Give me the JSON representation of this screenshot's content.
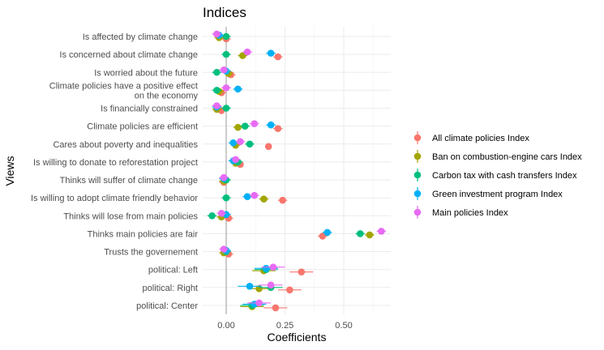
{
  "chart_data": {
    "type": "scatter",
    "title": "Indices",
    "xlabel": "Coefficients",
    "ylabel": "Views",
    "xlim": [
      -0.1,
      0.7
    ],
    "x_ticks": [
      0.0,
      0.25,
      0.5
    ],
    "x_tick_labels": [
      "0.00",
      "0.25",
      "0.50"
    ],
    "grid": true,
    "legend_position": "right",
    "categories": [
      [
        "Is affected by climate change"
      ],
      [
        "Is concerned about climate change"
      ],
      [
        "Is worried about the future"
      ],
      [
        "Climate policies have a positive effect ",
        "on the economy"
      ],
      [
        "Is financially constrained"
      ],
      [
        "Climate policies are efficient"
      ],
      [
        "Cares about poverty and inequalities"
      ],
      [
        "Is willing to donate to reforestation project"
      ],
      [
        "Thinks will suffer of climate change"
      ],
      [
        "Is willing to adopt climate friendly behavior"
      ],
      [
        "Thinks will lose from main policies"
      ],
      [
        "Thinks main policies are fair"
      ],
      [
        "Trusts the governement"
      ],
      [
        "political: Left"
      ],
      [
        "political: Right"
      ],
      [
        "political: Center"
      ]
    ],
    "series": [
      {
        "name": "All climate policies Index",
        "color": "#F8766D",
        "values": [
          0.0,
          0.22,
          0.02,
          -0.02,
          -0.02,
          0.22,
          0.18,
          0.06,
          -0.01,
          0.24,
          0.01,
          0.41,
          0.01,
          0.32,
          0.27,
          0.21
        ],
        "ci_low": [
          -0.02,
          0.2,
          0.0,
          -0.04,
          -0.04,
          0.2,
          0.17,
          0.05,
          -0.03,
          0.22,
          -0.01,
          0.39,
          -0.01,
          0.27,
          0.22,
          0.16
        ],
        "ci_high": [
          0.02,
          0.24,
          0.04,
          0.0,
          0.0,
          0.24,
          0.19,
          0.07,
          0.01,
          0.26,
          0.03,
          0.43,
          0.03,
          0.37,
          0.32,
          0.26
        ]
      },
      {
        "name": "Ban on combustion-engine cars Index",
        "color": "#A3A500",
        "values": [
          -0.03,
          0.07,
          0.01,
          -0.03,
          -0.04,
          0.05,
          0.04,
          0.04,
          -0.01,
          0.16,
          -0.02,
          0.61,
          -0.01,
          0.16,
          0.14,
          0.11
        ],
        "ci_low": [
          -0.05,
          0.05,
          -0.01,
          -0.05,
          -0.06,
          0.03,
          0.02,
          0.02,
          -0.03,
          0.14,
          -0.04,
          0.59,
          -0.03,
          0.11,
          0.09,
          0.06
        ],
        "ci_high": [
          -0.01,
          0.09,
          0.03,
          -0.01,
          -0.02,
          0.07,
          0.06,
          0.06,
          0.01,
          0.18,
          0.0,
          0.63,
          0.01,
          0.21,
          0.19,
          0.16
        ]
      },
      {
        "name": "Carbon tax with cash transfers Index",
        "color": "#00BF7D",
        "values": [
          0.0,
          0.0,
          -0.04,
          -0.04,
          0.0,
          0.08,
          0.1,
          0.05,
          0.0,
          0.0,
          -0.06,
          0.57,
          0.0,
          0.17,
          0.19,
          0.11
        ],
        "ci_low": [
          -0.02,
          -0.02,
          -0.06,
          -0.06,
          -0.02,
          0.06,
          0.08,
          0.03,
          -0.02,
          -0.02,
          -0.08,
          0.55,
          -0.02,
          0.12,
          0.14,
          0.06
        ],
        "ci_high": [
          0.02,
          0.02,
          -0.02,
          -0.02,
          0.02,
          0.1,
          0.12,
          0.07,
          0.02,
          0.02,
          -0.04,
          0.59,
          0.02,
          0.22,
          0.24,
          0.16
        ]
      },
      {
        "name": "Green investment program Index",
        "color": "#00B0F6",
        "values": [
          -0.03,
          0.19,
          0.0,
          0.05,
          -0.04,
          0.19,
          0.03,
          0.03,
          -0.01,
          0.09,
          0.0,
          0.43,
          0.0,
          0.17,
          0.1,
          0.12
        ],
        "ci_low": [
          -0.05,
          0.17,
          -0.02,
          0.03,
          -0.06,
          0.17,
          0.01,
          0.01,
          -0.03,
          0.07,
          -0.02,
          0.41,
          -0.02,
          0.12,
          0.05,
          0.07
        ],
        "ci_high": [
          -0.01,
          0.21,
          0.02,
          0.07,
          -0.02,
          0.21,
          0.05,
          0.05,
          0.01,
          0.11,
          0.02,
          0.45,
          0.02,
          0.22,
          0.15,
          0.17
        ]
      },
      {
        "name": "Main policies Index",
        "color": "#E76BF3",
        "values": [
          -0.04,
          0.09,
          -0.01,
          0.0,
          -0.04,
          0.12,
          0.06,
          0.04,
          -0.01,
          0.12,
          -0.02,
          0.66,
          -0.01,
          0.2,
          0.19,
          0.14
        ],
        "ci_low": [
          -0.06,
          0.07,
          -0.03,
          -0.02,
          -0.06,
          0.1,
          0.04,
          0.02,
          -0.03,
          0.1,
          -0.04,
          0.64,
          -0.03,
          0.15,
          0.14,
          0.09
        ],
        "ci_high": [
          -0.02,
          0.11,
          0.01,
          0.02,
          -0.02,
          0.14,
          0.08,
          0.06,
          0.01,
          0.14,
          0.0,
          0.68,
          0.01,
          0.25,
          0.24,
          0.19
        ]
      }
    ]
  }
}
